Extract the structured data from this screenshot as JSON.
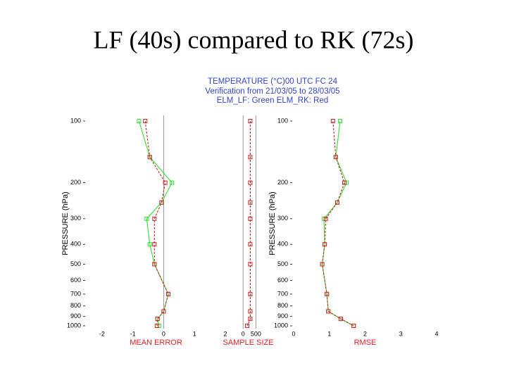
{
  "title": "LF (40s) compared to RK (72s)",
  "header": [
    "TEMPERATURE (°C)00 UTC FC 24",
    "Verification from 21/03/05 to 28/03/05",
    "ELM_LF: Green    ELM_RK: Red"
  ],
  "chart_data": [
    {
      "type": "line",
      "x_label": "MEAN ERROR",
      "y_label": "PRESSURE (hPa)",
      "y": [
        100,
        150,
        200,
        250,
        300,
        400,
        500,
        700,
        850,
        925,
        1000
      ],
      "ylim": [
        100,
        1000
      ],
      "log_y": true,
      "inverted_y": true,
      "yticks": [
        100,
        200,
        300,
        400,
        500,
        600,
        700,
        800,
        900,
        1000
      ],
      "xlim": [
        -2.5,
        2
      ],
      "xticks": [
        -2,
        -1,
        0,
        1,
        2
      ],
      "zero_line": true,
      "series": [
        {
          "name": "ELM_LF",
          "color": "#33dd33",
          "values": [
            -0.8,
            -0.45,
            0.27,
            -0.07,
            -0.55,
            -0.45,
            -0.3,
            0.15,
            0,
            -0.2,
            -0.15
          ]
        },
        {
          "name": "ELM_RK",
          "color": "#cc2222",
          "values": [
            -0.6,
            -0.45,
            0.05,
            -0.07,
            -0.3,
            -0.3,
            -0.3,
            0.15,
            0,
            -0.2,
            -0.22
          ]
        }
      ]
    },
    {
      "type": "line",
      "x_label": "SAMPLE SIZE",
      "y": [
        100,
        150,
        200,
        250,
        300,
        400,
        500,
        700,
        850,
        925,
        1000
      ],
      "ylim": [
        100,
        1000
      ],
      "log_y": true,
      "inverted_y": true,
      "xlim": [
        -200,
        600
      ],
      "xticks": [
        0,
        500
      ],
      "grid": true,
      "series": [
        {
          "name": "ELM_RK",
          "color": "#cc2222",
          "values": [
            280,
            280,
            280,
            280,
            280,
            280,
            280,
            280,
            280,
            280,
            160
          ]
        }
      ]
    },
    {
      "type": "line",
      "x_label": "RMSE",
      "y_label": "PRESSURE (hPa)",
      "y": [
        100,
        150,
        200,
        250,
        300,
        400,
        500,
        700,
        850,
        925,
        1000
      ],
      "ylim": [
        100,
        1000
      ],
      "log_y": true,
      "inverted_y": true,
      "yticks": [
        100,
        200,
        300,
        400,
        500,
        600,
        700,
        800,
        900,
        1000
      ],
      "xlim": [
        0,
        4
      ],
      "xticks": [
        0,
        1,
        2,
        3,
        4
      ],
      "series": [
        {
          "name": "ELM_LF",
          "color": "#33dd33",
          "values": [
            1.3,
            1.18,
            1.48,
            1.22,
            0.85,
            0.87,
            0.8,
            0.93,
            0.97,
            1.32,
            1.68
          ]
        },
        {
          "name": "ELM_RK",
          "color": "#cc2222",
          "values": [
            1.1,
            1.18,
            1.42,
            1.22,
            0.9,
            0.87,
            0.8,
            0.93,
            0.97,
            1.32,
            1.68
          ]
        }
      ]
    }
  ]
}
